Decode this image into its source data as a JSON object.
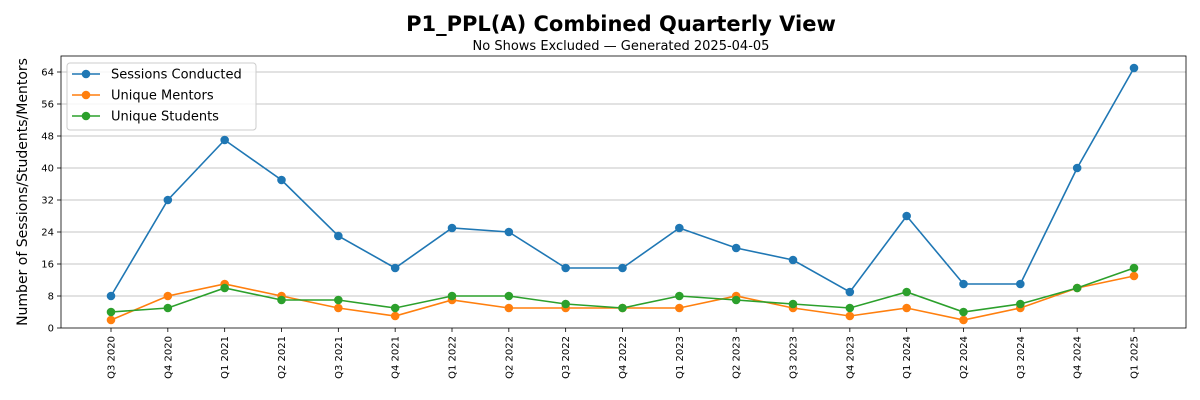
{
  "chart_data": {
    "type": "line",
    "title": "P1_PPL(A) Combined Quarterly View",
    "subtitle": "No Shows Excluded — Generated 2025-04-05",
    "xlabel": "",
    "ylabel": "Number of Sessions/Students/Mentors",
    "ylim": [
      0,
      68
    ],
    "yticks": [
      0,
      8,
      16,
      24,
      32,
      40,
      48,
      56,
      64
    ],
    "grid": "horizontal",
    "legend_position": "top-left",
    "categories": [
      "Q3 2020",
      "Q4 2020",
      "Q1 2021",
      "Q2 2021",
      "Q3 2021",
      "Q4 2021",
      "Q1 2022",
      "Q2 2022",
      "Q3 2022",
      "Q4 2022",
      "Q1 2023",
      "Q2 2023",
      "Q3 2023",
      "Q4 2023",
      "Q1 2024",
      "Q2 2024",
      "Q3 2024",
      "Q4 2024",
      "Q1 2025"
    ],
    "series": [
      {
        "name": "Sessions Conducted",
        "color": "#1f77b4",
        "values": [
          8,
          32,
          47,
          37,
          23,
          15,
          25,
          24,
          15,
          15,
          25,
          20,
          17,
          9,
          28,
          11,
          11,
          40,
          65
        ]
      },
      {
        "name": "Unique Mentors",
        "color": "#ff7f0e",
        "values": [
          2,
          8,
          11,
          8,
          5,
          3,
          7,
          5,
          5,
          5,
          5,
          8,
          5,
          3,
          5,
          2,
          5,
          10,
          13
        ]
      },
      {
        "name": "Unique Students",
        "color": "#2ca02c",
        "values": [
          4,
          5,
          10,
          7,
          7,
          5,
          8,
          8,
          6,
          5,
          8,
          7,
          6,
          5,
          9,
          4,
          6,
          10,
          15
        ]
      }
    ]
  }
}
